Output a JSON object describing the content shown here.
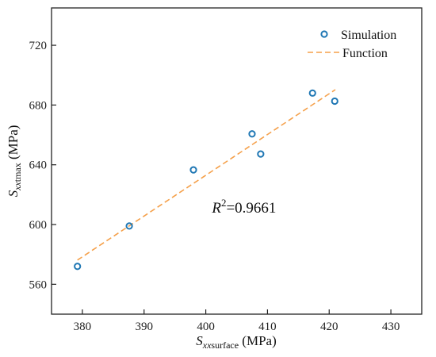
{
  "chart_data": {
    "type": "scatter",
    "x_axis": {
      "range": [
        375,
        435
      ],
      "ticks": [
        380,
        390,
        400,
        410,
        420,
        430
      ],
      "label_symbol": "S",
      "label_subscript": "xx",
      "label_subscript2": "surface",
      "label_unit": " (MPa)"
    },
    "y_axis": {
      "range": [
        540,
        745
      ],
      "ticks": [
        560,
        600,
        640,
        680,
        720
      ],
      "label_symbol": "S",
      "label_subscript": "xx",
      "label_subscript2": "tmax",
      "label_unit": " (MPa)"
    },
    "grid": false,
    "legend_position": "top-right",
    "series": [
      {
        "name": "Simulation",
        "kind": "points",
        "marker": "circle-open",
        "color": "#1f77b4",
        "points": [
          {
            "x": 379.2,
            "y": 572.0
          },
          {
            "x": 387.6,
            "y": 599.0
          },
          {
            "x": 398.0,
            "y": 636.6
          },
          {
            "x": 407.5,
            "y": 660.7
          },
          {
            "x": 408.9,
            "y": 647.2
          },
          {
            "x": 417.3,
            "y": 688.0
          },
          {
            "x": 420.9,
            "y": 682.6
          }
        ]
      },
      {
        "name": "Function",
        "kind": "line",
        "style": "dashed",
        "color": "#f5a04a",
        "points": [
          {
            "x": 379.2,
            "y": 576.2
          },
          {
            "x": 421.0,
            "y": 690.3
          }
        ]
      }
    ],
    "annotation": {
      "symbol": "R",
      "superscript": "2",
      "text": "=0.9661",
      "x": 401.0,
      "y": 608.0
    }
  }
}
